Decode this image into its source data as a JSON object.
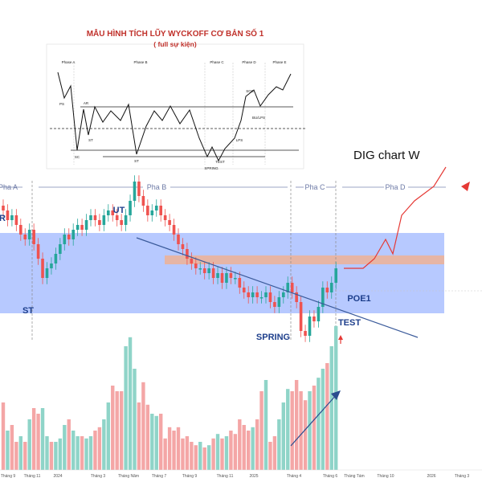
{
  "chart_title": "DIG chart W",
  "inset": {
    "title": "MẪU HÌNH TÍCH LŨY WYCKOFF CƠ BẢN SỐ 1",
    "subtitle": "( full sự kiện)",
    "phases": [
      "Phase A",
      "Phase B",
      "Phase C",
      "Phase D",
      "Phase E"
    ],
    "event_labels": [
      "PS",
      "AR",
      "SC",
      "ST",
      "ST",
      "SPRING",
      "TEST",
      "LPS",
      "SOS",
      "BU/LPS"
    ]
  },
  "phases": [
    "Pha A",
    "Pha B",
    "Pha C",
    "Pha D"
  ],
  "annotations": [
    "UT",
    "ST",
    "SPRING",
    "TEST",
    "POE1"
  ],
  "edge_labels": [
    "R"
  ],
  "x_axis": [
    "Tháng 9",
    "Tháng 11",
    "2024",
    "Tháng 3",
    "Tháng Năm",
    "Tháng 7",
    "Tháng 9",
    "Tháng 11",
    "2025",
    "Tháng 4",
    "Tháng 6",
    "Tháng Tám",
    "Tháng 10",
    "2026",
    "Tháng 3"
  ],
  "colors": {
    "up": "#26a69a",
    "down": "#ef5350",
    "accumulation_zone": "#9bb4ff",
    "resistance_band": "#e8b4a0",
    "projection": "#e53935",
    "trendline": "#3a5a9a"
  },
  "chart_data": {
    "type": "candlestick",
    "price": {
      "close": [
        43,
        41,
        42,
        40,
        38,
        37,
        39,
        36,
        33,
        29,
        31,
        32,
        34,
        36,
        38,
        37,
        39,
        40,
        39,
        41,
        42,
        41,
        40,
        42,
        43,
        42,
        41,
        40,
        42,
        45,
        49,
        46,
        44,
        42,
        43,
        44,
        42,
        41,
        40,
        38,
        36,
        35,
        33,
        32,
        31,
        31,
        30,
        31,
        29,
        30,
        28,
        30,
        29,
        29,
        27,
        26,
        25,
        26,
        25,
        25,
        26,
        24,
        23,
        25,
        26,
        28,
        26,
        24,
        18,
        17,
        21,
        20,
        23,
        27,
        26,
        28,
        31
      ],
      "projection": [
        31,
        33,
        37,
        34,
        42,
        45,
        48,
        52
      ]
    },
    "volume": [
      60,
      35,
      40,
      25,
      30,
      25,
      45,
      55,
      50,
      55,
      30,
      25,
      25,
      28,
      40,
      45,
      35,
      30,
      30,
      28,
      30,
      35,
      38,
      45,
      60,
      75,
      70,
      70,
      110,
      118,
      90,
      60,
      78,
      58,
      50,
      48,
      50,
      28,
      38,
      35,
      38,
      28,
      30,
      25,
      22,
      25,
      20,
      22,
      28,
      32,
      28,
      30,
      35,
      32,
      45,
      40,
      35,
      38,
      45,
      70,
      80,
      25,
      30,
      45,
      60,
      72,
      70,
      80,
      70,
      62,
      70,
      75,
      82,
      90,
      95,
      110,
      128
    ],
    "volume_increasing": [
      false,
      true,
      false,
      false,
      true,
      false,
      true,
      false,
      false,
      true,
      true,
      false,
      true,
      true,
      true,
      false,
      true,
      true,
      false,
      true,
      true,
      false,
      false,
      true,
      true,
      false,
      false,
      false,
      true,
      true,
      true,
      false,
      false,
      false,
      true,
      true,
      false,
      false,
      false,
      false,
      false,
      false,
      false,
      false,
      false,
      true,
      false,
      true,
      false,
      true,
      false,
      true,
      false,
      false,
      false,
      false,
      false,
      true,
      false,
      false,
      true,
      false,
      false,
      true,
      true,
      true,
      false,
      false,
      false,
      false,
      true,
      false,
      true,
      true,
      false,
      true,
      true
    ]
  }
}
